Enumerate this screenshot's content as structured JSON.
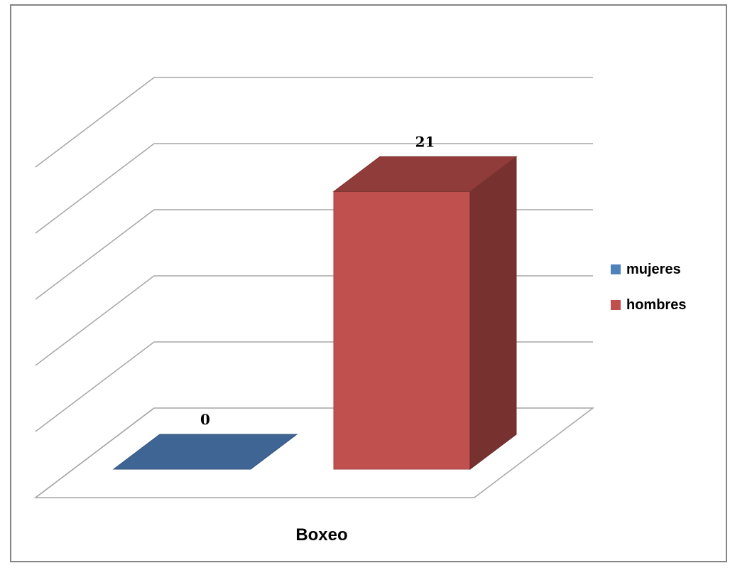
{
  "chart_data": {
    "type": "bar",
    "style": "3d-clustered-column",
    "categories": [
      "Boxeo"
    ],
    "series": [
      {
        "name": "mujeres",
        "values": [
          0
        ],
        "color": "#4f81bd"
      },
      {
        "name": "hombres",
        "values": [
          21
        ],
        "color": "#c0504d"
      }
    ],
    "data_labels": [
      "0",
      "21"
    ],
    "ylim": [
      0,
      25
    ],
    "y_gridlines": [
      0,
      5,
      10,
      15,
      20,
      25
    ],
    "y_tick_labels_shown": false,
    "grid": true,
    "legend_position": "right"
  }
}
